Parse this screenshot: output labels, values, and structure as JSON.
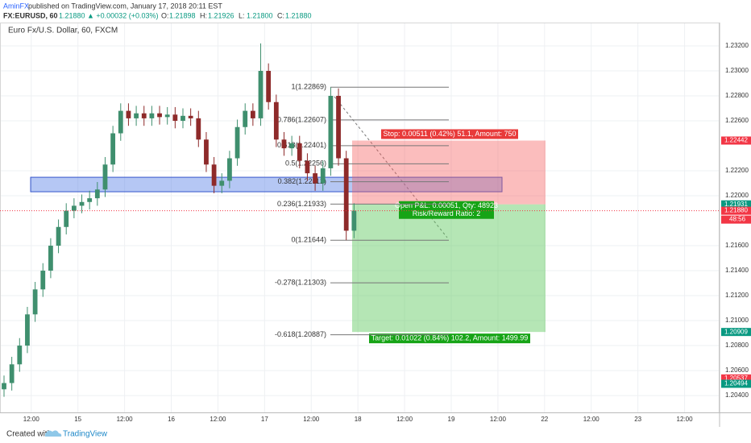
{
  "header": {
    "publisher": "AminFX",
    "published": "published on TradingView.com, January 17, 2018 20:11 EST",
    "symbol": "FX:EURUSD, 60",
    "last": "1.21880",
    "change": "▲ +0.00032 (+0.03%)",
    "ohlc": [
      {
        "k": "O:",
        "v": "1.21898"
      },
      {
        "k": "H:",
        "v": "1.21926"
      },
      {
        "k": "L:",
        "v": "1.21800"
      },
      {
        "k": "C:",
        "v": "1.21880"
      }
    ]
  },
  "chart_data": {
    "type": "candlestick",
    "title": "Euro Fx/U.S. Dollar, 60, FXCM",
    "up_color": "#3f8f6e",
    "down_color": "#8e2a2a",
    "x": [
      0,
      2,
      4,
      6,
      8,
      10,
      12,
      14,
      16,
      18,
      20,
      22,
      24,
      26,
      28,
      30,
      32,
      34,
      36,
      38,
      40,
      42,
      44,
      46,
      48,
      50,
      52,
      54,
      56,
      58,
      60,
      62,
      64,
      66,
      68,
      70,
      72,
      74,
      76,
      78,
      80,
      82,
      84,
      86,
      88,
      90
    ],
    "open": [
      1.2045,
      1.205,
      1.2065,
      1.208,
      1.2105,
      1.2125,
      1.214,
      1.216,
      1.2175,
      1.2188,
      1.2192,
      1.2195,
      1.2198,
      1.2205,
      1.2225,
      1.225,
      1.2268,
      1.2262,
      1.2266,
      1.2262,
      1.2266,
      1.2263,
      1.2265,
      1.226,
      1.2264,
      1.2262,
      1.2245,
      1.2225,
      1.2208,
      1.2212,
      1.223,
      1.2255,
      1.2268,
      1.2262,
      1.23,
      1.2275,
      1.2245,
      1.2238,
      1.2242,
      1.2228,
      1.2218,
      1.221,
      1.2222,
      1.228,
      1.223,
      1.2172
    ],
    "high": [
      1.2056,
      1.2071,
      1.2086,
      1.2111,
      1.2131,
      1.2146,
      1.2166,
      1.2181,
      1.2194,
      1.2198,
      1.2201,
      1.2204,
      1.2211,
      1.2231,
      1.2256,
      1.2274,
      1.2274,
      1.2272,
      1.2272,
      1.2272,
      1.2272,
      1.2271,
      1.2271,
      1.227,
      1.227,
      1.2268,
      1.2251,
      1.2231,
      1.2218,
      1.2236,
      1.2261,
      1.2274,
      1.2274,
      1.2322,
      1.2306,
      1.2281,
      1.2251,
      1.2248,
      1.2248,
      1.2234,
      1.2224,
      1.2228,
      1.22869,
      1.2286,
      1.2236,
      1.2194
    ],
    "low": [
      1.2039,
      1.2044,
      1.2059,
      1.2074,
      1.2099,
      1.2119,
      1.2134,
      1.2154,
      1.2169,
      1.2182,
      1.2186,
      1.2189,
      1.2192,
      1.2199,
      1.2219,
      1.2244,
      1.2256,
      1.2256,
      1.2256,
      1.2256,
      1.2257,
      1.2257,
      1.2254,
      1.2254,
      1.2256,
      1.2239,
      1.2219,
      1.2202,
      1.2202,
      1.2206,
      1.2224,
      1.2249,
      1.2256,
      1.2256,
      1.2269,
      1.2239,
      1.2232,
      1.2232,
      1.2222,
      1.2212,
      1.2204,
      1.2204,
      1.2216,
      1.2224,
      1.21644,
      1.2166
    ],
    "close": [
      1.205,
      1.2065,
      1.208,
      1.2105,
      1.2125,
      1.214,
      1.216,
      1.2175,
      1.2188,
      1.2192,
      1.2195,
      1.2198,
      1.2205,
      1.2225,
      1.225,
      1.2268,
      1.2262,
      1.2266,
      1.2262,
      1.2266,
      1.2263,
      1.2265,
      1.226,
      1.2264,
      1.2262,
      1.2245,
      1.2225,
      1.2208,
      1.2212,
      1.223,
      1.2255,
      1.2268,
      1.2262,
      1.23,
      1.2275,
      1.2245,
      1.2238,
      1.2242,
      1.2228,
      1.2218,
      1.221,
      1.2222,
      1.228,
      1.223,
      1.2172,
      1.2188
    ],
    "xlim": [
      0,
      184
    ],
    "ylim": [
      1.20265,
      1.23387
    ],
    "xticks": [
      {
        "value": 7,
        "label": "12:00"
      },
      {
        "value": 19,
        "label": "15"
      },
      {
        "value": 31,
        "label": "12:00"
      },
      {
        "value": 43,
        "label": "16"
      },
      {
        "value": 55,
        "label": "12:00"
      },
      {
        "value": 67,
        "label": "17"
      },
      {
        "value": 79,
        "label": "12:00"
      },
      {
        "value": 91,
        "label": "18"
      },
      {
        "value": 103,
        "label": "12:00"
      },
      {
        "value": 115,
        "label": "19"
      },
      {
        "value": 127,
        "label": "12:00"
      },
      {
        "value": 139,
        "label": "22"
      },
      {
        "value": 151,
        "label": "12:00"
      },
      {
        "value": 163,
        "label": "23"
      },
      {
        "value": 175,
        "label": "12:00"
      }
    ],
    "yticks": [
      {
        "value": 1.204,
        "label": "1.20400"
      },
      {
        "value": 1.206,
        "label": "1.20600"
      },
      {
        "value": 1.208,
        "label": "1.20800"
      },
      {
        "value": 1.21,
        "label": "1.21000"
      },
      {
        "value": 1.212,
        "label": "1.21200"
      },
      {
        "value": 1.214,
        "label": "1.21400"
      },
      {
        "value": 1.216,
        "label": "1.21600"
      },
      {
        "value": 1.22,
        "label": "1.22000"
      },
      {
        "value": 1.222,
        "label": "1.22200"
      },
      {
        "value": 1.226,
        "label": "1.22600"
      },
      {
        "value": 1.228,
        "label": "1.22800"
      },
      {
        "value": 1.23,
        "label": "1.23000"
      },
      {
        "value": 1.232,
        "label": "1.23200"
      }
    ],
    "grid": true,
    "current_price": {
      "value": 1.2188,
      "label": "1.21880"
    },
    "price_tags": [
      {
        "value": 1.22442,
        "label": "1.22442",
        "color": "#f23645"
      },
      {
        "value": 1.21931,
        "label": "1.21931",
        "color": "#089981"
      },
      {
        "value": 1.2188,
        "label": "1.21880",
        "color": "#f23645"
      },
      {
        "value": 1.20909,
        "label": "1.20909",
        "color": "#089981"
      },
      {
        "value": 1.20537,
        "label": "1.20537",
        "color": "#f23645"
      },
      {
        "value": 1.20494,
        "label": "1.20494",
        "color": "#089981"
      }
    ],
    "timer": "48:56",
    "zone": {
      "top": 1.22148,
      "bottom": 1.22032
    },
    "fib_levels": [
      {
        "label": "1(1.22869)",
        "value": 1.22869
      },
      {
        "label": "0.786(1.22607)",
        "value": 1.22607
      },
      {
        "label": "0.618(1.22401)",
        "value": 1.22401
      },
      {
        "label": "0.5(1.22256)",
        "value": 1.22256
      },
      {
        "label": "0.382(1.22112)",
        "value": 1.22112
      },
      {
        "label": "0.236(1.21933)",
        "value": 1.21933
      },
      {
        "label": "0(1.21644)",
        "value": 1.21644
      },
      {
        "label": "-0.278(1.21303)",
        "value": 1.21303
      },
      {
        "label": "-0.618(1.20887)",
        "value": 1.20887
      }
    ],
    "position": {
      "stop": 1.22442,
      "entry": 1.21931,
      "target": 1.20909,
      "stop_label": "Stop: 0.00511 (0.42%) 51.1, Amount: 750",
      "pnl_label": "Open P&L: 0.00051, Qty: 48923",
      "rr_label": "Risk/Reward Ratio: 2",
      "target_label": "Target: 0.01022 (0.84%) 102.2, Amount: 1499.99"
    }
  },
  "footer": {
    "created": "Created with",
    "brand": "TradingView"
  }
}
